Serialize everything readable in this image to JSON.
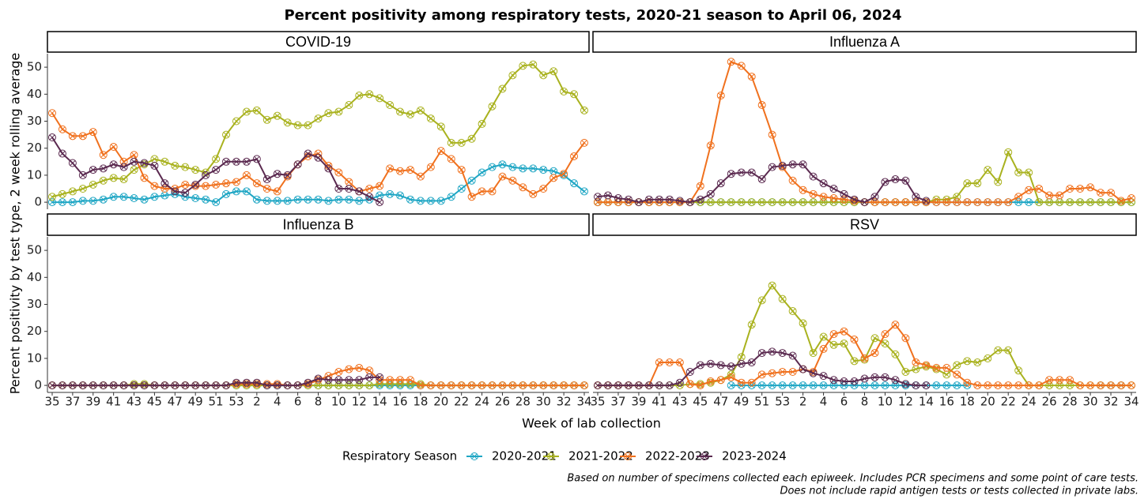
{
  "chart_data": {
    "type": "line",
    "title": "Percent positivity among respiratory tests, 2020-21 season to April 06, 2024",
    "y_label": "Percent positivity by test type, 2 week rolling average",
    "x_label": "Week of lab collection",
    "legend_title": "Respiratory Season",
    "notes": [
      "Based on number of specimens collected each epiweek. Includes PCR specimens and some point of care tests.",
      "Does not include rapid antigen tests or tests collected in private labs."
    ],
    "categories": [
      "35",
      null,
      "37",
      null,
      "39",
      null,
      "41",
      null,
      "43",
      null,
      "45",
      null,
      "47",
      null,
      "49",
      null,
      "51",
      null,
      "53",
      null,
      "2",
      null,
      "4",
      null,
      "6",
      null,
      "8",
      null,
      "10",
      null,
      "12",
      null,
      "14",
      null,
      "16",
      null,
      "18",
      null,
      "20",
      null,
      "22",
      null,
      "24",
      null,
      "26",
      null,
      "28",
      null,
      "30",
      null,
      "32",
      null,
      "34"
    ],
    "ylim": [
      -2.6,
      55
    ],
    "yticks": [
      0,
      10,
      20,
      30,
      40,
      50
    ],
    "series": [
      {
        "name": "2020-2021",
        "color": "#1fa6c4"
      },
      {
        "name": "2021-2022",
        "color": "#a9b21f"
      },
      {
        "name": "2022-2023",
        "color": "#f0711e"
      },
      {
        "name": "2023-2024",
        "color": "#5b2a50"
      }
    ],
    "panels": [
      {
        "title": "COVID-19",
        "values": [
          [
            0,
            0,
            0,
            0.5,
            0.5,
            1,
            2,
            2,
            1.5,
            1,
            2,
            2.5,
            3,
            2,
            1.5,
            1,
            0,
            3,
            4,
            4,
            1,
            0.5,
            0.5,
            0.5,
            1,
            1,
            1,
            0.5,
            1,
            1,
            0.5,
            1,
            2.5,
            3,
            2.5,
            1,
            0.5,
            0.5,
            0.5,
            2,
            5,
            8,
            11,
            13,
            14,
            13,
            12.5,
            12.5,
            12,
            11.5,
            10,
            7,
            4
          ],
          [
            2,
            3,
            4,
            5,
            6.5,
            8,
            9,
            8.5,
            12,
            14,
            16,
            15,
            13.5,
            13,
            12,
            11,
            16,
            25,
            30,
            33.5,
            34,
            30.5,
            32,
            29.5,
            28.5,
            28.5,
            31,
            33,
            33.5,
            36,
            39.5,
            40,
            38.5,
            36,
            33.5,
            32.5,
            34,
            31,
            28,
            22,
            22,
            23.5,
            29,
            35.5,
            42,
            47,
            50.5,
            51,
            47,
            48.5,
            41,
            40,
            34
          ],
          [
            33,
            27,
            24.5,
            24.5,
            26,
            17.5,
            20.5,
            15,
            17.5,
            9,
            6,
            5,
            5,
            6.5,
            6,
            6,
            6.5,
            7,
            7.5,
            10,
            7,
            5,
            4,
            9.5,
            14,
            17,
            18,
            13.5,
            11,
            7.5,
            4,
            5,
            6,
            12.5,
            11.5,
            12,
            9.5,
            13,
            19,
            16,
            12,
            2,
            4,
            4,
            9.5,
            8,
            5.5,
            3,
            5,
            9,
            10.5,
            17,
            22
          ],
          [
            24,
            18,
            14.5,
            10,
            12,
            12.5,
            14,
            13,
            15,
            14.5,
            13.5,
            7,
            4,
            3.5,
            6.5,
            10,
            12,
            15,
            15,
            15,
            16,
            8.5,
            10.5,
            10,
            14,
            18,
            16.5,
            12.5,
            5,
            5,
            4,
            2,
            0,
            null,
            null,
            null,
            null,
            null,
            null,
            null,
            null,
            null,
            null,
            null,
            null,
            null,
            null,
            null,
            null,
            null,
            null,
            null,
            null
          ]
        ]
      },
      {
        "title": "Influenza A",
        "values": [
          [
            0,
            0,
            0,
            0,
            0,
            0,
            0,
            0,
            0,
            0,
            0,
            0,
            0,
            0,
            0,
            0,
            0,
            0,
            0,
            0,
            0,
            0,
            0,
            0,
            0,
            0,
            0,
            0,
            0,
            0,
            0,
            0,
            0,
            0,
            0,
            0,
            0,
            0,
            0,
            0,
            0,
            0,
            0,
            0,
            0,
            0,
            0,
            0,
            0,
            0,
            0,
            0,
            0
          ],
          [
            0,
            0,
            0,
            0,
            0,
            0,
            0,
            0,
            0,
            0,
            0,
            0,
            0,
            0,
            0,
            0,
            0,
            0,
            0,
            0,
            0,
            0,
            0,
            0,
            0,
            0,
            0,
            0,
            0,
            0,
            0,
            0,
            0,
            1,
            1,
            2,
            7,
            7,
            12,
            7.5,
            18.5,
            11,
            11,
            0,
            0,
            0,
            0,
            0,
            0,
            0,
            0,
            0,
            0
          ],
          [
            0,
            0,
            0,
            0,
            0,
            0,
            0,
            0,
            0,
            0,
            6,
            21,
            39.5,
            52,
            50.5,
            46.5,
            36,
            25,
            13,
            8,
            4.5,
            3,
            2,
            1.5,
            1,
            0.5,
            0,
            0,
            0,
            0,
            0,
            0,
            0,
            0,
            0,
            0,
            0,
            0,
            0,
            0,
            0,
            2,
            4.5,
            5,
            2.5,
            2.5,
            5,
            5,
            5.5,
            3.5,
            3.5,
            0.5,
            1.5
          ],
          [
            2,
            2.5,
            1.5,
            1,
            0,
            1,
            1,
            1,
            0.5,
            0,
            1,
            3,
            7,
            10.5,
            11,
            11,
            8.5,
            13,
            13.5,
            14,
            14,
            9.5,
            7,
            5,
            3,
            1,
            0,
            2,
            7.5,
            8.5,
            8,
            2,
            0.5,
            null,
            null,
            null,
            null,
            null,
            null,
            null,
            null,
            null,
            null,
            null,
            null,
            null,
            null,
            null,
            null,
            null,
            null,
            null,
            null
          ]
        ]
      },
      {
        "title": "Influenza B",
        "values": [
          [
            0,
            0,
            0,
            0,
            0,
            0,
            0,
            0,
            0,
            0,
            0,
            0,
            0,
            0,
            0,
            0,
            0,
            0,
            0,
            0,
            0,
            0,
            0,
            0,
            0,
            0,
            0,
            0,
            0,
            0,
            0,
            0,
            0,
            0,
            0,
            0,
            0,
            0,
            0,
            0,
            0,
            0,
            0,
            0,
            0,
            0,
            0,
            0,
            0,
            0,
            0,
            0,
            0
          ],
          [
            0,
            0,
            0,
            0,
            0,
            0,
            0,
            0,
            0.5,
            0.5,
            0,
            0,
            0,
            0,
            0,
            0,
            0,
            0,
            0,
            0,
            0,
            0,
            0,
            0,
            0,
            0,
            0,
            0,
            0,
            0,
            0,
            0,
            0.5,
            0.5,
            0.5,
            0.5,
            0.5,
            0,
            0,
            0,
            0,
            0,
            0,
            0,
            0,
            0,
            0,
            0,
            0,
            0,
            0,
            0,
            0
          ],
          [
            0,
            0,
            0,
            0,
            0,
            0,
            0,
            0,
            0,
            0,
            0,
            0,
            0,
            0,
            0,
            0,
            0,
            0,
            0.5,
            0.5,
            0.5,
            0.5,
            0.5,
            0,
            0,
            0.5,
            2,
            3.5,
            5,
            6,
            6.5,
            5.5,
            2,
            2,
            2,
            2,
            0,
            0,
            0,
            0,
            0,
            0,
            0,
            0,
            0,
            0,
            0,
            0,
            0,
            0,
            0,
            0,
            0
          ],
          [
            0,
            0,
            0,
            0,
            0,
            0,
            0,
            0,
            0,
            0,
            0,
            0,
            0,
            0,
            0,
            0,
            0,
            0,
            1,
            1,
            1,
            0,
            0,
            0,
            0,
            1,
            2.5,
            2,
            2,
            2,
            2,
            3,
            3,
            null,
            null,
            null,
            null,
            null,
            null,
            null,
            null,
            null,
            null,
            null,
            null,
            null,
            null,
            null,
            null,
            null,
            null,
            null,
            null
          ]
        ]
      },
      {
        "title": "RSV",
        "values": [
          [
            null,
            null,
            null,
            null,
            null,
            null,
            null,
            null,
            null,
            null,
            null,
            null,
            null,
            0,
            0,
            0,
            0,
            0,
            0,
            0,
            0,
            0,
            0,
            0,
            0,
            0,
            0,
            0,
            0,
            0,
            0,
            0,
            0,
            0,
            0,
            0,
            0,
            null,
            null,
            null,
            null,
            null,
            null,
            null,
            null,
            null,
            null,
            null,
            null,
            0,
            0,
            0,
            null
          ],
          [
            0,
            0,
            0,
            0,
            0,
            0,
            0,
            0,
            0,
            0.5,
            0.5,
            1,
            2,
            4,
            10.5,
            22.5,
            31.5,
            37,
            32,
            27.5,
            23,
            12,
            18,
            15,
            15.5,
            9,
            9.5,
            17.5,
            15.5,
            11.5,
            5,
            6,
            7,
            6,
            4,
            7.5,
            9,
            8.5,
            10,
            13,
            13,
            5.5,
            0,
            0,
            0,
            0,
            0,
            0,
            0,
            0,
            0,
            0,
            0
          ],
          [
            0,
            0,
            0,
            0,
            0,
            0,
            8.5,
            8.5,
            8.5,
            0.5,
            0,
            1.5,
            2,
            3,
            1,
            1,
            4,
            4.5,
            5,
            5,
            6,
            5,
            13.5,
            19,
            20,
            17,
            10,
            12,
            19,
            22.5,
            17.5,
            8.5,
            7.5,
            6.5,
            6.5,
            4,
            1,
            0,
            0,
            0,
            0,
            0,
            0,
            0,
            2,
            2,
            2,
            0,
            0,
            0,
            0,
            0,
            0
          ],
          [
            0,
            0,
            0,
            0,
            0,
            0,
            0,
            0,
            1,
            5,
            7.5,
            8,
            7.5,
            7,
            8,
            8.5,
            12,
            12.5,
            12,
            11,
            6,
            4.5,
            3.5,
            2,
            1.5,
            1.5,
            2.5,
            3,
            3,
            2,
            0.5,
            0,
            0,
            null,
            null,
            null,
            null,
            null,
            null,
            null,
            null,
            null,
            null,
            null,
            null,
            null,
            null,
            null,
            null,
            null,
            null,
            null,
            null
          ]
        ]
      }
    ]
  }
}
